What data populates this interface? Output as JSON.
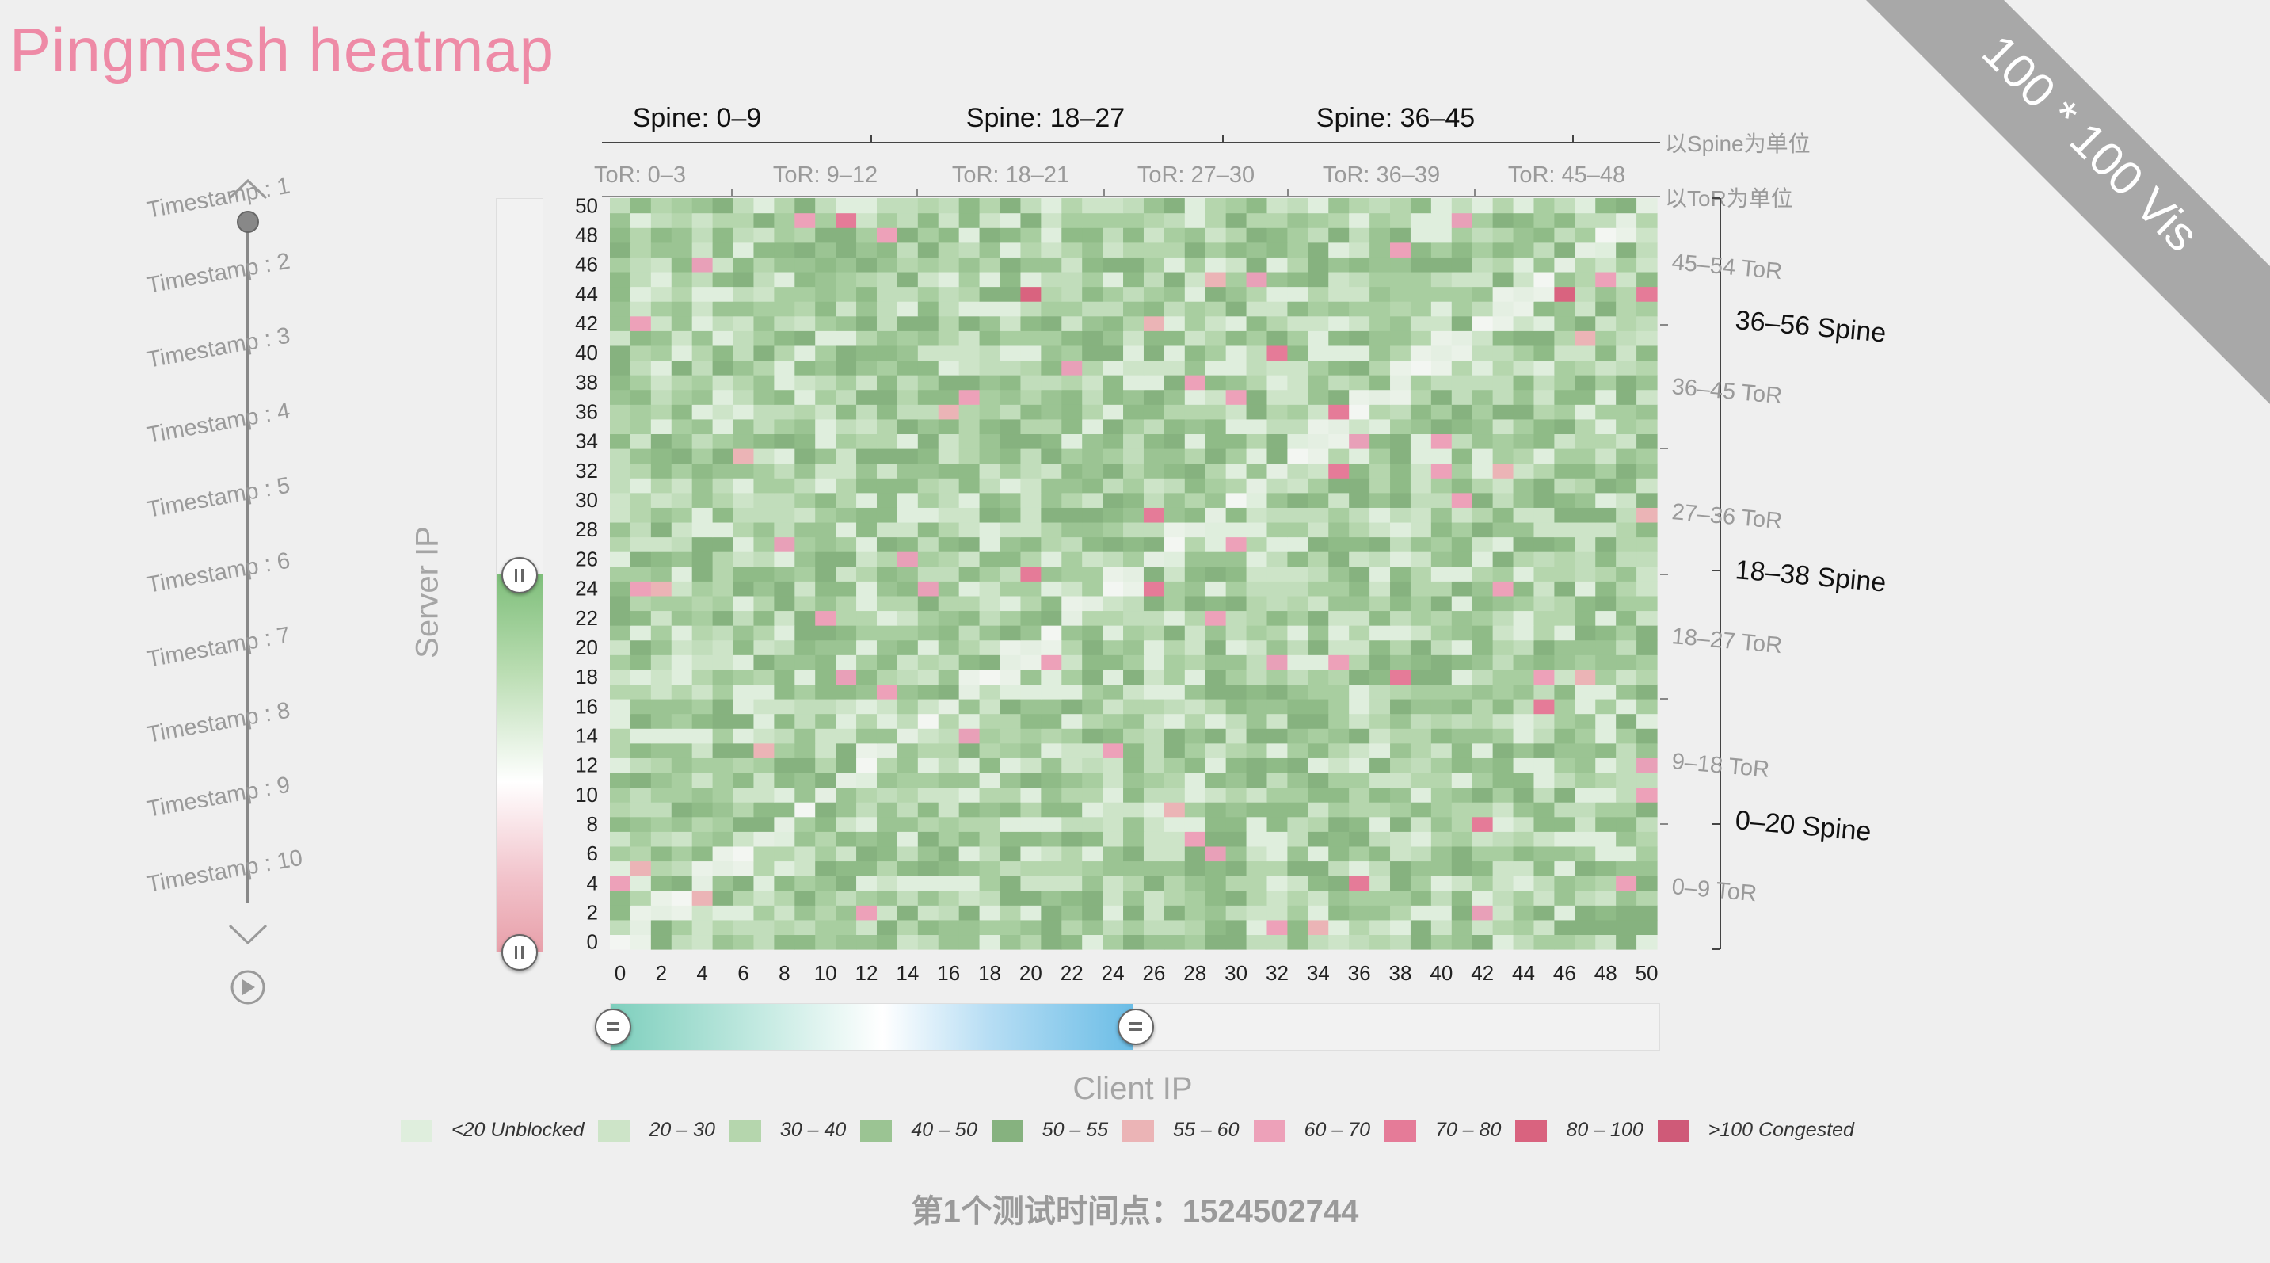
{
  "title": "Pingmesh heatmap",
  "ribbon_text": "100 * 100  Vis",
  "timeline": {
    "labels": [
      "Timestamp : 1",
      "Timestamp : 2",
      "Timestamp : 3",
      "Timestamp : 4",
      "Timestamp : 5",
      "Timestamp : 6",
      "Timestamp : 7",
      "Timestamp : 8",
      "Timestamp : 9",
      "Timestamp : 10"
    ],
    "current_index": 0,
    "icons": [
      "chevron-up-icon",
      "chevron-down-icon",
      "play-icon"
    ]
  },
  "colors": {
    "title": "#ee8aa6",
    "ribbon": "#a8a8a8"
  },
  "legend": [
    {
      "label": "<20 Unblocked",
      "color": "#dfeedd"
    },
    {
      "label": "20 – 30",
      "color": "#cde4c8"
    },
    {
      "label": "30 – 40",
      "color": "#b5d6ad"
    },
    {
      "label": "40 – 50",
      "color": "#9bc493"
    },
    {
      "label": "50 – 55",
      "color": "#86b27f"
    },
    {
      "label": "55 – 60",
      "color": "#ebb4b6"
    },
    {
      "label": "60 – 70",
      "color": "#eda1b9"
    },
    {
      "label": "70 – 80",
      "color": "#e57b98"
    },
    {
      "label": "80 – 100",
      "color": "#d9637f"
    },
    {
      "label": ">100 Congested",
      "color": "#cf5a78"
    }
  ],
  "footer": "第1个测试时间点：1524502744",
  "chart_data": {
    "type": "heatmap",
    "title": "Pingmesh heatmap",
    "xlabel": "Client IP",
    "ylabel": "Server IP",
    "x_range": [
      0,
      50
    ],
    "y_range": [
      0,
      50
    ],
    "x_ticks": [
      0,
      2,
      4,
      6,
      8,
      10,
      12,
      14,
      16,
      18,
      20,
      22,
      24,
      26,
      28,
      30,
      32,
      34,
      36,
      38,
      40,
      42,
      44,
      46,
      48,
      50
    ],
    "y_ticks": [
      0,
      2,
      4,
      6,
      8,
      10,
      12,
      14,
      16,
      18,
      20,
      22,
      24,
      26,
      28,
      30,
      32,
      34,
      36,
      38,
      40,
      42,
      44,
      46,
      48,
      50
    ],
    "cell_value_note": "",
    "top_spine_groups": [
      "Spine: 0–9",
      "Spine: 18–27",
      "Spine: 36–45"
    ],
    "top_spine_unit": "以Spine为单位",
    "top_tor_groups": [
      "ToR: 0–3",
      "ToR: 9–12",
      "ToR: 18–21",
      "ToR: 27–30",
      "ToR: 36–39",
      "ToR: 45–48"
    ],
    "top_tor_unit": "以ToR为单位",
    "right_tor_groups": [
      "45–54 ToR",
      "36–45 ToR",
      "27–36 ToR",
      "18–27 ToR",
      "9–18 ToR",
      "0–9 ToR"
    ],
    "right_spine_groups": [
      "36–56 Spine",
      "18–38 Spine",
      "0–20 Spine"
    ],
    "y_filter": [
      0,
      24
    ],
    "x_filter": [
      0,
      25
    ],
    "highlight_cells": [
      [
        2,
        24
      ],
      [
        1,
        42
      ],
      [
        4,
        46
      ],
      [
        11,
        49
      ],
      [
        13,
        48
      ],
      [
        29,
        45
      ],
      [
        20,
        44
      ],
      [
        31,
        45
      ],
      [
        46,
        44
      ],
      [
        48,
        45
      ],
      [
        16,
        36
      ],
      [
        17,
        37
      ],
      [
        22,
        39
      ],
      [
        32,
        40
      ],
      [
        39,
        40
      ],
      [
        26,
        42
      ],
      [
        28,
        38
      ],
      [
        36,
        34
      ],
      [
        35,
        36
      ],
      [
        40,
        34
      ],
      [
        47,
        41
      ],
      [
        30,
        37
      ],
      [
        8,
        27
      ],
      [
        20,
        25
      ],
      [
        41,
        30
      ],
      [
        50,
        29
      ],
      [
        1,
        24
      ],
      [
        15,
        24
      ],
      [
        26,
        24
      ],
      [
        43,
        24
      ],
      [
        22,
        22
      ],
      [
        29,
        22
      ],
      [
        11,
        18
      ],
      [
        38,
        18
      ],
      [
        45,
        18
      ],
      [
        47,
        18
      ],
      [
        13,
        17
      ],
      [
        32,
        19
      ],
      [
        45,
        16
      ],
      [
        35,
        19
      ],
      [
        7,
        13
      ],
      [
        24,
        13
      ],
      [
        50,
        12
      ],
      [
        42,
        8
      ],
      [
        50,
        10
      ],
      [
        27,
        9
      ],
      [
        28,
        7
      ],
      [
        29,
        6
      ],
      [
        6,
        6
      ],
      [
        0,
        4
      ],
      [
        1,
        5
      ],
      [
        12,
        2
      ],
      [
        42,
        2
      ],
      [
        36,
        4
      ],
      [
        32,
        1
      ],
      [
        34,
        1
      ],
      [
        49,
        4
      ],
      [
        17,
        14
      ],
      [
        35,
        32
      ],
      [
        40,
        32
      ],
      [
        43,
        32
      ],
      [
        9,
        49
      ],
      [
        14,
        26
      ],
      [
        26,
        29
      ],
      [
        30,
        27
      ],
      [
        4,
        3
      ],
      [
        10,
        22
      ],
      [
        41,
        49
      ],
      [
        50,
        44
      ],
      [
        21,
        19
      ],
      [
        6,
        33
      ],
      [
        38,
        47
      ]
    ]
  }
}
